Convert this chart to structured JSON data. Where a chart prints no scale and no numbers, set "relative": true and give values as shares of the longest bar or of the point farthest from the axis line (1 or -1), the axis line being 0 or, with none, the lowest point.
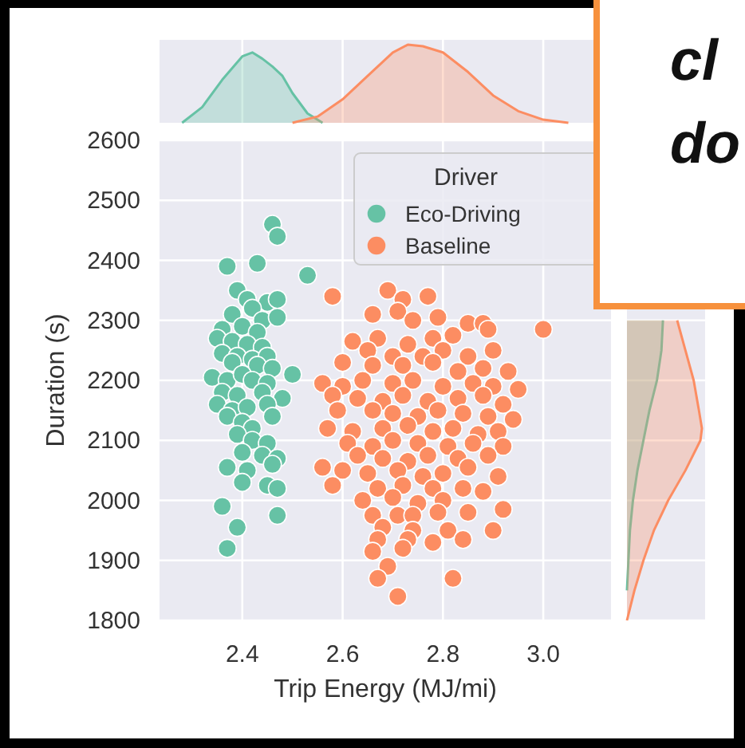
{
  "chart_data": [
    {
      "type": "scatter",
      "xlabel": "Trip Energy (MJ/mi)",
      "ylabel": "Duration (s)",
      "legend_title": "Driver",
      "legend": "top right",
      "grid": true,
      "marker": "circle",
      "xlim": [
        2.235,
        3.135
      ],
      "xticks": [
        2.4,
        2.6,
        2.8,
        {
          "value": 3,
          "label": "3.0"
        }
      ],
      "ylim": [
        1800,
        2600
      ],
      "yticks": [
        1800,
        1900,
        2000,
        2100,
        2200,
        2300,
        2400,
        2500,
        2600
      ],
      "annotations": [
        "cl",
        "do"
      ],
      "series": [
        {
          "name": "Eco-Driving",
          "color": "#66c2a5",
          "x": [
            2.46,
            2.47,
            2.53,
            2.37,
            2.43,
            2.39,
            2.41,
            2.45,
            2.47,
            2.38,
            2.42,
            2.44,
            2.47,
            2.36,
            2.4,
            2.43,
            2.35,
            2.38,
            2.41,
            2.44,
            2.36,
            2.39,
            2.42,
            2.45,
            2.38,
            2.43,
            2.46,
            2.34,
            2.37,
            2.4,
            2.42,
            2.45,
            2.5,
            2.36,
            2.39,
            2.44,
            2.48,
            2.35,
            2.38,
            2.41,
            2.45,
            2.37,
            2.4,
            2.42,
            2.46,
            2.39,
            2.42,
            2.45,
            2.4,
            2.44,
            2.47,
            2.37,
            2.41,
            2.46,
            2.4,
            2.45,
            2.47,
            2.36,
            2.47,
            2.39,
            2.37
          ],
          "values": [
            2460,
            2440,
            2375,
            2390,
            2395,
            2350,
            2335,
            2330,
            2335,
            2310,
            2320,
            2300,
            2305,
            2285,
            2290,
            2280,
            2270,
            2265,
            2260,
            2255,
            2245,
            2240,
            2235,
            2240,
            2230,
            2225,
            2220,
            2205,
            2200,
            2210,
            2200,
            2195,
            2210,
            2180,
            2175,
            2180,
            2170,
            2160,
            2150,
            2155,
            2160,
            2140,
            2130,
            2120,
            2140,
            2110,
            2100,
            2095,
            2080,
            2075,
            2070,
            2055,
            2050,
            2060,
            2030,
            2025,
            2020,
            1990,
            1975,
            1955,
            1920
          ]
        },
        {
          "name": "Baseline",
          "color": "#fc8d62",
          "x": [
            2.58,
            2.69,
            2.72,
            2.77,
            2.66,
            2.71,
            2.74,
            2.79,
            2.85,
            2.88,
            2.89,
            3.0,
            2.62,
            2.67,
            2.73,
            2.78,
            2.82,
            2.65,
            2.7,
            2.76,
            2.8,
            2.85,
            2.9,
            2.6,
            2.66,
            2.72,
            2.78,
            2.83,
            2.88,
            2.93,
            2.56,
            2.6,
            2.64,
            2.7,
            2.74,
            2.8,
            2.86,
            2.9,
            2.95,
            2.58,
            2.63,
            2.68,
            2.72,
            2.77,
            2.83,
            2.88,
            2.92,
            2.59,
            2.66,
            2.7,
            2.75,
            2.79,
            2.84,
            2.89,
            2.94,
            2.57,
            2.62,
            2.68,
            2.73,
            2.78,
            2.82,
            2.87,
            2.91,
            2.61,
            2.66,
            2.7,
            2.75,
            2.81,
            2.86,
            2.92,
            2.63,
            2.68,
            2.73,
            2.77,
            2.83,
            2.89,
            2.56,
            2.6,
            2.65,
            2.71,
            2.76,
            2.8,
            2.85,
            2.91,
            2.58,
            2.67,
            2.72,
            2.78,
            2.84,
            2.88,
            2.64,
            2.7,
            2.75,
            2.8,
            2.66,
            2.71,
            2.74,
            2.79,
            2.85,
            2.92,
            2.68,
            2.74,
            2.81,
            2.9,
            2.67,
            2.73,
            2.78,
            2.84,
            2.66,
            2.72,
            2.69,
            2.67,
            2.82,
            2.71
          ],
          "values": [
            2340,
            2350,
            2335,
            2340,
            2310,
            2315,
            2300,
            2305,
            2295,
            2295,
            2285,
            2285,
            2265,
            2270,
            2260,
            2270,
            2275,
            2250,
            2240,
            2240,
            2250,
            2240,
            2250,
            2230,
            2225,
            2225,
            2230,
            2215,
            2220,
            2215,
            2195,
            2190,
            2200,
            2195,
            2200,
            2190,
            2195,
            2190,
            2185,
            2175,
            2170,
            2165,
            2175,
            2165,
            2170,
            2175,
            2160,
            2150,
            2150,
            2145,
            2140,
            2150,
            2145,
            2140,
            2135,
            2120,
            2115,
            2120,
            2125,
            2115,
            2120,
            2110,
            2115,
            2095,
            2090,
            2100,
            2095,
            2090,
            2095,
            2090,
            2075,
            2070,
            2065,
            2075,
            2070,
            2075,
            2055,
            2050,
            2045,
            2050,
            2040,
            2045,
            2055,
            2040,
            2025,
            2020,
            2025,
            2020,
            2020,
            2015,
            2000,
            2005,
            1995,
            2000,
            1975,
            1975,
            1975,
            1980,
            1980,
            1985,
            1955,
            1950,
            1950,
            1950,
            1935,
            1935,
            1930,
            1935,
            1915,
            1920,
            1890,
            1870,
            1870,
            1840
          ]
        }
      ]
    },
    {
      "type": "area",
      "relative": true,
      "tick_labels": false,
      "grid": "x",
      "xlim": [
        2.235,
        3.135
      ],
      "xticks": [
        2.4,
        2.6,
        2.8,
        3
      ],
      "series": [
        {
          "color": "#66c2a5",
          "x": [
            2.28,
            2.32,
            2.36,
            2.4,
            2.42,
            2.44,
            2.46,
            2.48,
            2.5,
            2.53,
            2.56
          ],
          "values": [
            0,
            0.2,
            0.55,
            0.85,
            0.9,
            0.82,
            0.72,
            0.6,
            0.38,
            0.12,
            0
          ]
        },
        {
          "color": "#fc8d62",
          "x": [
            2.5,
            2.55,
            2.6,
            2.65,
            2.7,
            2.73,
            2.76,
            2.8,
            2.85,
            2.9,
            2.95,
            3.0,
            3.05
          ],
          "values": [
            0,
            0.08,
            0.3,
            0.6,
            0.9,
            1,
            0.98,
            0.9,
            0.65,
            0.35,
            0.15,
            0.04,
            0
          ]
        }
      ]
    },
    {
      "type": "area",
      "orientation": "horizontal",
      "relative": true,
      "tick_labels": false,
      "grid": "y",
      "ylim": [
        1800,
        2600
      ],
      "yticks": [
        1800,
        1900,
        2000,
        2100,
        2200,
        2300,
        2400,
        2500,
        2600
      ],
      "series": [
        {
          "color": "#66c2a5",
          "x": [
            1850,
            1900,
            1950,
            2000,
            2050,
            2100,
            2150,
            2200,
            2250,
            2300
          ],
          "values": [
            0,
            0.02,
            0.04,
            0.08,
            0.14,
            0.22,
            0.3,
            0.4,
            0.46,
            0.48
          ]
        },
        {
          "color": "#fc8d62",
          "x": [
            1800,
            1850,
            1900,
            1950,
            2000,
            2050,
            2100,
            2120,
            2150,
            2200,
            2250,
            2300
          ],
          "values": [
            0,
            0.1,
            0.22,
            0.36,
            0.55,
            0.78,
            0.98,
            1,
            0.96,
            0.89,
            0.78,
            0.67
          ]
        }
      ]
    }
  ]
}
